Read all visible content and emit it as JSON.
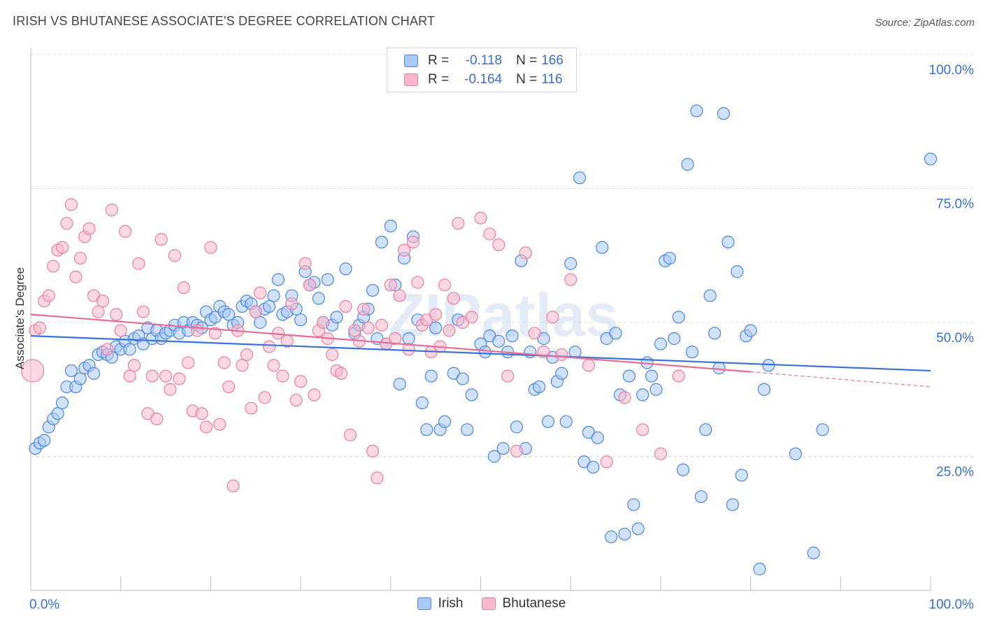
{
  "title": "IRISH VS BHUTANESE ASSOCIATE'S DEGREE CORRELATION CHART",
  "source": "Source: ZipAtlas.com",
  "watermark": "ZIPatlas",
  "colors": {
    "irish_fill": "#a9c8f3",
    "irish_stroke": "#4c86d8",
    "irish_line": "#3a73d4",
    "bhutanese_fill": "#f7b8cb",
    "bhutanese_stroke": "#e97fa0",
    "bhutanese_line": "#e46f96",
    "tick_label": "#3a6fd0",
    "grid": "#dcdcdc"
  },
  "legend": {
    "rows": [
      {
        "series": "Irish",
        "r_label": "R =",
        "r_value": "-0.118",
        "n_label": "N =",
        "n_value": "166"
      },
      {
        "series": "Bhutanese",
        "r_label": "R =",
        "r_value": "-0.164",
        "n_label": "N =",
        "n_value": "116"
      }
    ]
  },
  "chart_data": {
    "type": "scatter",
    "title": "IRISH VS BHUTANESE ASSOCIATE'S DEGREE CORRELATION CHART",
    "xlabel": "",
    "ylabel": "Associate's Degree",
    "xlim": [
      0,
      100
    ],
    "ylim": [
      0,
      100
    ],
    "x_tick_labels": [
      "0.0%",
      "100.0%"
    ],
    "y_ticks": [
      25,
      50,
      75,
      100
    ],
    "y_tick_labels": [
      "25.0%",
      "50.0%",
      "75.0%",
      "100.0%"
    ],
    "grid": true,
    "legend_position": "top-center",
    "series": [
      {
        "name": "Irish",
        "r": -0.118,
        "n": 166,
        "trend": {
          "x": [
            0,
            100
          ],
          "y": [
            47.5,
            41.0
          ]
        },
        "points": [
          [
            0.5,
            26.5
          ],
          [
            1.0,
            27.5
          ],
          [
            1.5,
            28.0
          ],
          [
            2.0,
            30.5
          ],
          [
            2.5,
            32.0
          ],
          [
            3.0,
            33.0
          ],
          [
            3.5,
            35.0
          ],
          [
            4.0,
            38.0
          ],
          [
            4.5,
            41.0
          ],
          [
            5.0,
            38.0
          ],
          [
            5.5,
            39.5
          ],
          [
            6.0,
            41.5
          ],
          [
            6.5,
            42.0
          ],
          [
            7.0,
            40.5
          ],
          [
            7.5,
            44.0
          ],
          [
            8.0,
            44.5
          ],
          [
            8.5,
            44.0
          ],
          [
            9.0,
            43.5
          ],
          [
            9.5,
            45.5
          ],
          [
            10.0,
            45.0
          ],
          [
            10.5,
            46.5
          ],
          [
            11.0,
            45.0
          ],
          [
            11.5,
            47.0
          ],
          [
            12.0,
            47.5
          ],
          [
            12.5,
            46.0
          ],
          [
            13.0,
            49.0
          ],
          [
            13.5,
            47.0
          ],
          [
            14.0,
            48.5
          ],
          [
            14.5,
            47.0
          ],
          [
            15.0,
            48.0
          ],
          [
            15.5,
            48.5
          ],
          [
            16.0,
            49.5
          ],
          [
            16.5,
            48.0
          ],
          [
            17.0,
            50.0
          ],
          [
            17.5,
            48.5
          ],
          [
            18.0,
            50.0
          ],
          [
            18.5,
            49.5
          ],
          [
            19.0,
            49.0
          ],
          [
            19.5,
            52.0
          ],
          [
            20.0,
            50.5
          ],
          [
            20.5,
            51.0
          ],
          [
            21.0,
            53.0
          ],
          [
            21.5,
            52.0
          ],
          [
            22.0,
            51.5
          ],
          [
            22.5,
            49.5
          ],
          [
            23.0,
            50.0
          ],
          [
            23.5,
            53.0
          ],
          [
            24.0,
            54.0
          ],
          [
            24.5,
            53.5
          ],
          [
            25.0,
            52.0
          ],
          [
            25.5,
            50.0
          ],
          [
            26.0,
            52.5
          ],
          [
            26.5,
            53.0
          ],
          [
            27.0,
            55.0
          ],
          [
            27.5,
            58.0
          ],
          [
            28.0,
            51.5
          ],
          [
            28.5,
            52.0
          ],
          [
            29.0,
            55.0
          ],
          [
            29.5,
            52.5
          ],
          [
            30.0,
            50.5
          ],
          [
            30.5,
            59.5
          ],
          [
            31.0,
            57.0
          ],
          [
            31.5,
            57.5
          ],
          [
            32.0,
            54.5
          ],
          [
            32.5,
            50.0
          ],
          [
            33.0,
            58.0
          ],
          [
            33.5,
            49.5
          ],
          [
            34.0,
            51.0
          ],
          [
            35.0,
            60.0
          ],
          [
            36.0,
            48.0
          ],
          [
            36.5,
            49.5
          ],
          [
            37.0,
            51.0
          ],
          [
            37.5,
            52.5
          ],
          [
            38.0,
            56.0
          ],
          [
            38.5,
            47.0
          ],
          [
            39.0,
            65.0
          ],
          [
            39.5,
            46.0
          ],
          [
            40.0,
            68.0
          ],
          [
            40.5,
            57.0
          ],
          [
            41.0,
            38.5
          ],
          [
            41.5,
            62.0
          ],
          [
            42.0,
            47.0
          ],
          [
            42.5,
            66.0
          ],
          [
            43.0,
            50.5
          ],
          [
            43.5,
            35.0
          ],
          [
            44.0,
            30.0
          ],
          [
            44.5,
            40.0
          ],
          [
            45.0,
            49.0
          ],
          [
            45.5,
            30.0
          ],
          [
            46.0,
            31.5
          ],
          [
            47.0,
            40.5
          ],
          [
            47.5,
            50.5
          ],
          [
            48.0,
            39.5
          ],
          [
            48.5,
            30.0
          ],
          [
            49.0,
            36.5
          ],
          [
            50.0,
            46.0
          ],
          [
            50.5,
            44.5
          ],
          [
            51.0,
            47.5
          ],
          [
            51.5,
            25.0
          ],
          [
            52.0,
            46.5
          ],
          [
            52.5,
            26.5
          ],
          [
            53.0,
            44.5
          ],
          [
            53.5,
            47.5
          ],
          [
            54.0,
            30.5
          ],
          [
            54.5,
            61.5
          ],
          [
            55.0,
            26.5
          ],
          [
            55.5,
            44.5
          ],
          [
            56.0,
            37.5
          ],
          [
            56.5,
            38.0
          ],
          [
            57.0,
            47.0
          ],
          [
            57.5,
            31.5
          ],
          [
            58.0,
            43.5
          ],
          [
            58.5,
            39.0
          ],
          [
            59.0,
            40.5
          ],
          [
            59.5,
            31.5
          ],
          [
            60.0,
            61.0
          ],
          [
            60.5,
            44.5
          ],
          [
            61.0,
            77.0
          ],
          [
            61.5,
            24.0
          ],
          [
            62.0,
            29.5
          ],
          [
            62.5,
            23.0
          ],
          [
            63.0,
            28.5
          ],
          [
            63.5,
            64.0
          ],
          [
            64.0,
            47.0
          ],
          [
            64.5,
            10.0
          ],
          [
            65.0,
            48.0
          ],
          [
            65.5,
            36.5
          ],
          [
            66.0,
            10.5
          ],
          [
            66.5,
            40.0
          ],
          [
            67.0,
            16.0
          ],
          [
            67.5,
            11.5
          ],
          [
            68.0,
            36.5
          ],
          [
            68.5,
            42.5
          ],
          [
            69.0,
            40.0
          ],
          [
            69.5,
            37.5
          ],
          [
            70.0,
            46.0
          ],
          [
            70.5,
            61.5
          ],
          [
            71.0,
            62.0
          ],
          [
            71.5,
            47.0
          ],
          [
            72.0,
            51.0
          ],
          [
            72.5,
            22.5
          ],
          [
            73.0,
            79.5
          ],
          [
            73.5,
            44.5
          ],
          [
            74.0,
            89.5
          ],
          [
            74.5,
            17.5
          ],
          [
            75.0,
            30.0
          ],
          [
            75.5,
            55.0
          ],
          [
            76.0,
            48.0
          ],
          [
            76.5,
            41.5
          ],
          [
            77.0,
            89.0
          ],
          [
            77.5,
            65.0
          ],
          [
            78.0,
            16.0
          ],
          [
            78.5,
            59.5
          ],
          [
            79.0,
            21.5
          ],
          [
            79.5,
            47.5
          ],
          [
            80.0,
            48.5
          ],
          [
            81.0,
            4.0
          ],
          [
            81.5,
            37.5
          ],
          [
            82.0,
            42.0
          ],
          [
            85.0,
            25.5
          ],
          [
            87.0,
            7.0
          ],
          [
            88.0,
            30.0
          ],
          [
            100.0,
            80.5
          ]
        ]
      },
      {
        "name": "Bhutanese",
        "r": -0.164,
        "n": 116,
        "trend": {
          "x": [
            0,
            80
          ],
          "y": [
            51.5,
            40.8
          ]
        },
        "trend_dashed": {
          "x": [
            80,
            100
          ],
          "y": [
            40.8,
            38.0
          ]
        },
        "points": [
          [
            0.2,
            41.0,
            "big"
          ],
          [
            0.5,
            48.5
          ],
          [
            1.0,
            49.0
          ],
          [
            1.5,
            54.0
          ],
          [
            2.0,
            55.0
          ],
          [
            2.5,
            60.5
          ],
          [
            3.0,
            63.5
          ],
          [
            3.5,
            64.0
          ],
          [
            4.0,
            68.5
          ],
          [
            4.5,
            72.0
          ],
          [
            5.0,
            58.5
          ],
          [
            5.5,
            62.0
          ],
          [
            6.0,
            66.0
          ],
          [
            6.5,
            67.5
          ],
          [
            7.0,
            55.0
          ],
          [
            7.5,
            52.0
          ],
          [
            8.0,
            54.0
          ],
          [
            8.5,
            45.0
          ],
          [
            9.0,
            71.0
          ],
          [
            9.5,
            51.5
          ],
          [
            10.0,
            48.5
          ],
          [
            10.5,
            67.0
          ],
          [
            11.0,
            40.0
          ],
          [
            11.5,
            42.0
          ],
          [
            12.0,
            61.0
          ],
          [
            12.5,
            52.0
          ],
          [
            13.0,
            33.0
          ],
          [
            13.5,
            40.0
          ],
          [
            14.0,
            32.0
          ],
          [
            14.5,
            65.5
          ],
          [
            15.0,
            40.0
          ],
          [
            15.5,
            37.5
          ],
          [
            16.0,
            62.5
          ],
          [
            16.5,
            39.5
          ],
          [
            17.0,
            56.5
          ],
          [
            17.5,
            42.5
          ],
          [
            18.0,
            33.5
          ],
          [
            18.5,
            48.5
          ],
          [
            19.0,
            33.0
          ],
          [
            19.5,
            30.5
          ],
          [
            20.0,
            64.0
          ],
          [
            20.5,
            48.0
          ],
          [
            21.0,
            31.0
          ],
          [
            21.5,
            42.5
          ],
          [
            22.0,
            38.0
          ],
          [
            22.5,
            19.5
          ],
          [
            23.0,
            48.5
          ],
          [
            23.5,
            42.0
          ],
          [
            24.0,
            44.0
          ],
          [
            24.5,
            34.0
          ],
          [
            25.0,
            52.0
          ],
          [
            25.5,
            55.5
          ],
          [
            26.0,
            36.0
          ],
          [
            26.5,
            45.5
          ],
          [
            27.0,
            42.0
          ],
          [
            27.5,
            48.0
          ],
          [
            28.0,
            40.0
          ],
          [
            28.5,
            46.5
          ],
          [
            29.0,
            53.5
          ],
          [
            29.5,
            35.5
          ],
          [
            30.0,
            39.0
          ],
          [
            30.5,
            61.0
          ],
          [
            31.0,
            57.0
          ],
          [
            31.5,
            36.5
          ],
          [
            32.0,
            48.5
          ],
          [
            32.5,
            50.0
          ],
          [
            33.0,
            47.0
          ],
          [
            33.5,
            44.0
          ],
          [
            34.0,
            41.0
          ],
          [
            34.5,
            40.5
          ],
          [
            35.0,
            53.0
          ],
          [
            35.5,
            29.0
          ],
          [
            36.0,
            48.5
          ],
          [
            36.5,
            46.5
          ],
          [
            37.0,
            52.5
          ],
          [
            37.5,
            49.0
          ],
          [
            38.0,
            26.0
          ],
          [
            38.5,
            21.0
          ],
          [
            39.0,
            49.5
          ],
          [
            39.5,
            46.0
          ],
          [
            40.0,
            57.0
          ],
          [
            40.5,
            47.0
          ],
          [
            41.0,
            55.0
          ],
          [
            41.5,
            63.5
          ],
          [
            42.0,
            45.0
          ],
          [
            42.5,
            65.0
          ],
          [
            43.0,
            57.5
          ],
          [
            43.5,
            49.5
          ],
          [
            44.0,
            50.5
          ],
          [
            44.5,
            44.5
          ],
          [
            45.0,
            51.5
          ],
          [
            45.5,
            45.5
          ],
          [
            46.0,
            57.0
          ],
          [
            46.5,
            48.5
          ],
          [
            47.0,
            54.5
          ],
          [
            47.5,
            68.5
          ],
          [
            48.0,
            50.0
          ],
          [
            49.0,
            51.0
          ],
          [
            50.0,
            69.5
          ],
          [
            51.0,
            66.5
          ],
          [
            52.0,
            64.5
          ],
          [
            53.0,
            40.0
          ],
          [
            54.0,
            26.0
          ],
          [
            55.0,
            63.0
          ],
          [
            56.0,
            48.0
          ],
          [
            57.0,
            44.5
          ],
          [
            58.0,
            51.0
          ],
          [
            59.0,
            44.0
          ],
          [
            60.0,
            58.0
          ],
          [
            62.0,
            42.0
          ],
          [
            64.0,
            24.0
          ],
          [
            66.0,
            36.0
          ],
          [
            68.0,
            30.0
          ],
          [
            70.0,
            25.5
          ],
          [
            72.0,
            40.0
          ]
        ]
      }
    ]
  }
}
